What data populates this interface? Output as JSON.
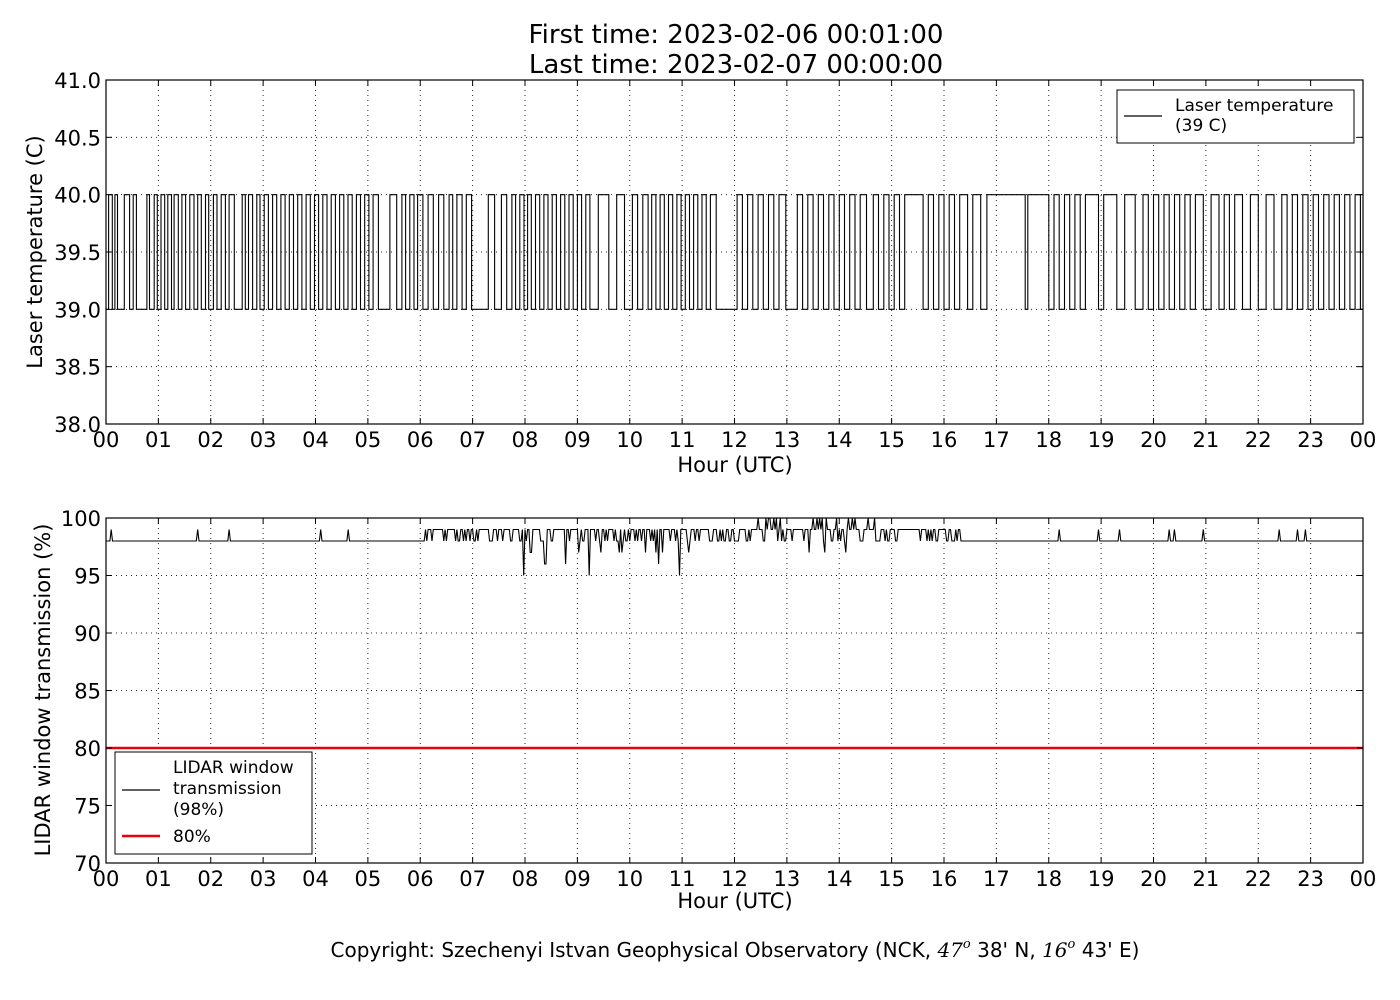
{
  "header": {
    "first_time": "First time: 2023-02-06 00:01:00",
    "last_time": "Last time: 2023-02-07 00:00:00"
  },
  "footer": {
    "copyright_prefix": "Copyright: Szechenyi Istvan Geophysical Observatory (NCK, ",
    "lat_deg": "47",
    "lat_min": " 38' N, ",
    "lon_deg": "16",
    "lon_min": " 43' E)",
    "degree_mark": "o"
  },
  "colors": {
    "series": "#000000",
    "threshold": "#e8000b",
    "background": "#ffffff"
  },
  "chart_data": [
    {
      "type": "line",
      "xlabel": "Hour (UTC)",
      "ylabel": "Laser temperature (C)",
      "xlim": [
        0,
        24
      ],
      "ylim": [
        38.0,
        41.0
      ],
      "x_ticks": [
        "00",
        "01",
        "02",
        "03",
        "04",
        "05",
        "06",
        "07",
        "08",
        "09",
        "10",
        "11",
        "12",
        "13",
        "14",
        "15",
        "16",
        "17",
        "18",
        "19",
        "20",
        "21",
        "22",
        "23",
        "00"
      ],
      "y_ticks": [
        "38.0",
        "38.5",
        "39.0",
        "39.5",
        "40.0",
        "40.5",
        "41.0"
      ],
      "grid": true,
      "legend_position": "top-right",
      "legend": [
        "Laser temperature",
        "(39 C)"
      ],
      "series": [
        {
          "name": "Laser temperature (39 C)",
          "values_range": [
            39.0,
            40.0
          ],
          "toggle_hours": [
            0.05,
            0.12,
            0.17,
            0.22,
            0.35,
            0.45,
            0.52,
            0.58,
            0.78,
            0.83,
            0.92,
            0.98,
            1.05,
            1.12,
            1.18,
            1.25,
            1.3,
            1.38,
            1.45,
            1.52,
            1.6,
            1.68,
            1.75,
            1.82,
            1.9,
            1.96,
            2.05,
            2.12,
            2.2,
            2.28,
            2.35,
            2.45,
            2.6,
            2.66,
            2.72,
            2.8,
            2.88,
            2.94,
            3.02,
            3.1,
            3.18,
            3.26,
            3.34,
            3.42,
            3.5,
            3.58,
            3.66,
            3.74,
            3.82,
            3.9,
            3.98,
            4.06,
            4.14,
            4.22,
            4.3,
            4.38,
            4.46,
            4.54,
            4.62,
            4.7,
            4.78,
            4.86,
            4.94,
            5.02,
            5.1,
            5.2,
            5.42,
            5.55,
            5.65,
            5.72,
            5.8,
            5.88,
            5.95,
            6.05,
            6.15,
            6.25,
            6.35,
            6.45,
            6.55,
            6.62,
            6.7,
            6.8,
            6.88,
            6.98,
            7.3,
            7.42,
            7.55,
            7.65,
            7.75,
            7.82,
            7.9,
            7.98,
            8.05,
            8.12,
            8.2,
            8.28,
            8.36,
            8.44,
            8.52,
            8.6,
            8.68,
            8.76,
            8.84,
            8.92,
            9.0,
            9.08,
            9.16,
            9.24,
            9.4,
            9.6,
            9.75,
            9.9,
            10.05,
            10.15,
            10.25,
            10.35,
            10.42,
            10.5,
            10.58,
            10.66,
            10.74,
            10.82,
            10.9,
            10.98,
            11.06,
            11.14,
            11.22,
            11.3,
            11.38,
            11.46,
            11.54,
            11.65,
            12.05,
            12.15,
            12.25,
            12.35,
            12.45,
            12.55,
            12.65,
            12.75,
            12.85,
            12.98,
            13.2,
            13.3,
            13.4,
            13.5,
            13.6,
            13.7,
            13.8,
            13.9,
            14.0,
            14.1,
            14.2,
            14.3,
            14.4,
            14.52,
            14.65,
            14.75,
            14.85,
            14.95,
            15.05,
            15.15,
            15.25,
            15.6,
            15.7,
            15.8,
            15.9,
            16.0,
            16.1,
            16.2,
            16.3,
            16.45,
            16.55,
            16.7,
            16.82,
            17.55,
            17.6,
            18.0,
            18.1,
            18.2,
            18.3,
            18.4,
            18.5,
            18.6,
            18.7,
            18.95,
            19.05,
            19.3,
            19.45,
            19.65,
            19.8,
            19.9,
            20.0,
            20.1,
            20.2,
            20.3,
            20.4,
            20.5,
            20.6,
            20.7,
            20.8,
            20.95,
            21.1,
            21.25,
            21.35,
            21.45,
            21.55,
            21.7,
            21.85,
            22.0,
            22.15,
            22.3,
            22.45,
            22.55,
            22.65,
            22.75,
            22.85,
            22.95,
            23.05,
            23.15,
            23.25,
            23.35,
            23.45,
            23.55,
            23.65,
            23.75,
            23.85,
            23.95
          ]
        }
      ]
    },
    {
      "type": "line",
      "xlabel": "Hour (UTC)",
      "ylabel": "LIDAR window transmission (%)",
      "xlim": [
        0,
        24
      ],
      "ylim": [
        70,
        100
      ],
      "x_ticks": [
        "00",
        "01",
        "02",
        "03",
        "04",
        "05",
        "06",
        "07",
        "08",
        "09",
        "10",
        "11",
        "12",
        "13",
        "14",
        "15",
        "16",
        "17",
        "18",
        "19",
        "20",
        "21",
        "22",
        "23",
        "00"
      ],
      "y_ticks": [
        "70",
        "75",
        "80",
        "85",
        "90",
        "95",
        "100"
      ],
      "grid": true,
      "legend_position": "lower-left",
      "legend": [
        "LIDAR window",
        "transmission",
        "(98%)",
        "80%"
      ],
      "baseline": 98,
      "threshold": 80,
      "series": [
        {
          "name": "LIDAR window transmission (98%)",
          "spikes_up_hours": [
            0.1,
            1.75,
            2.35,
            4.1,
            4.62,
            18.2,
            18.95,
            19.35,
            20.3,
            20.4,
            20.95,
            22.4,
            22.75,
            22.9
          ],
          "noisy_segments": [
            {
              "from": 6.1,
              "to": 7.9,
              "low": 98,
              "high": 99
            },
            {
              "from": 7.9,
              "to": 11.0,
              "low": 95,
              "high": 99
            },
            {
              "from": 11.0,
              "to": 12.4,
              "low": 97,
              "high": 99
            },
            {
              "from": 12.4,
              "to": 14.7,
              "low": 97,
              "high": 100
            },
            {
              "from": 14.8,
              "to": 16.35,
              "low": 98,
              "high": 99
            }
          ]
        },
        {
          "name": "80%",
          "values": [
            80,
            80
          ]
        }
      ]
    }
  ]
}
